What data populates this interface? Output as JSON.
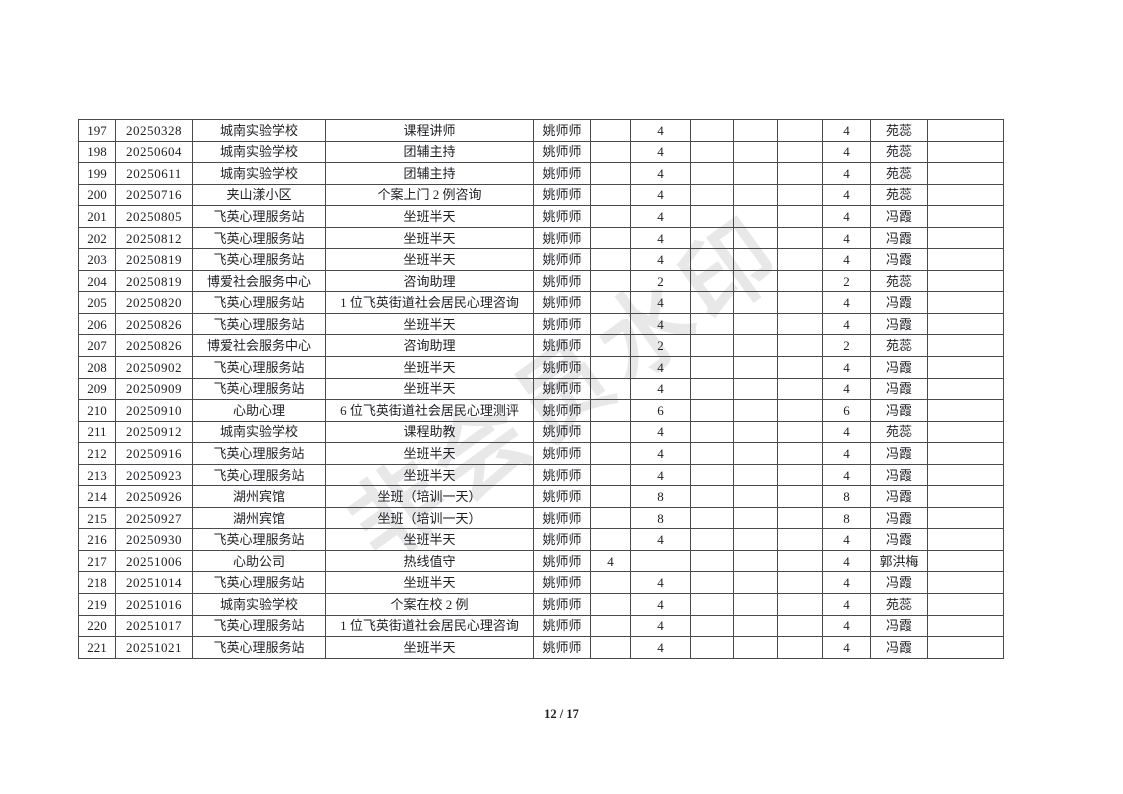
{
  "page": {
    "footer_text": "12 / 17",
    "watermark_text": "非会员水印",
    "text_color": "#1e1e24",
    "border_color": "#4a4a4a",
    "watermark_color": "#e8e8e8",
    "background_color": "#ffffff"
  },
  "table": {
    "rows": [
      [
        "197",
        "20250328",
        "城南实验学校",
        "课程讲师",
        "姚师师",
        "",
        "4",
        "",
        "",
        "",
        "4",
        "苑蕊",
        ""
      ],
      [
        "198",
        "20250604",
        "城南实验学校",
        "团辅主持",
        "姚师师",
        "",
        "4",
        "",
        "",
        "",
        "4",
        "苑蕊",
        ""
      ],
      [
        "199",
        "20250611",
        "城南实验学校",
        "团辅主持",
        "姚师师",
        "",
        "4",
        "",
        "",
        "",
        "4",
        "苑蕊",
        ""
      ],
      [
        "200",
        "20250716",
        "夹山漾小区",
        "个案上门 2 例咨询",
        "姚师师",
        "",
        "4",
        "",
        "",
        "",
        "4",
        "苑蕊",
        ""
      ],
      [
        "201",
        "20250805",
        "飞英心理服务站",
        "坐班半天",
        "姚师师",
        "",
        "4",
        "",
        "",
        "",
        "4",
        "冯霞",
        ""
      ],
      [
        "202",
        "20250812",
        "飞英心理服务站",
        "坐班半天",
        "姚师师",
        "",
        "4",
        "",
        "",
        "",
        "4",
        "冯霞",
        ""
      ],
      [
        "203",
        "20250819",
        "飞英心理服务站",
        "坐班半天",
        "姚师师",
        "",
        "4",
        "",
        "",
        "",
        "4",
        "冯霞",
        ""
      ],
      [
        "204",
        "20250819",
        "博爱社会服务中心",
        "咨询助理",
        "姚师师",
        "",
        "2",
        "",
        "",
        "",
        "2",
        "苑蕊",
        ""
      ],
      [
        "205",
        "20250820",
        "飞英心理服务站",
        "1 位飞英街道社会居民心理咨询",
        "姚师师",
        "",
        "4",
        "",
        "",
        "",
        "4",
        "冯霞",
        ""
      ],
      [
        "206",
        "20250826",
        "飞英心理服务站",
        "坐班半天",
        "姚师师",
        "",
        "4",
        "",
        "",
        "",
        "4",
        "冯霞",
        ""
      ],
      [
        "207",
        "20250826",
        "博爱社会服务中心",
        "咨询助理",
        "姚师师",
        "",
        "2",
        "",
        "",
        "",
        "2",
        "苑蕊",
        ""
      ],
      [
        "208",
        "20250902",
        "飞英心理服务站",
        "坐班半天",
        "姚师师",
        "",
        "4",
        "",
        "",
        "",
        "4",
        "冯霞",
        ""
      ],
      [
        "209",
        "20250909",
        "飞英心理服务站",
        "坐班半天",
        "姚师师",
        "",
        "4",
        "",
        "",
        "",
        "4",
        "冯霞",
        ""
      ],
      [
        "210",
        "20250910",
        "心助心理",
        "6 位飞英街道社会居民心理测评",
        "姚师师",
        "",
        "6",
        "",
        "",
        "",
        "6",
        "冯霞",
        ""
      ],
      [
        "211",
        "20250912",
        "城南实验学校",
        "课程助教",
        "姚师师",
        "",
        "4",
        "",
        "",
        "",
        "4",
        "苑蕊",
        ""
      ],
      [
        "212",
        "20250916",
        "飞英心理服务站",
        "坐班半天",
        "姚师师",
        "",
        "4",
        "",
        "",
        "",
        "4",
        "冯霞",
        ""
      ],
      [
        "213",
        "20250923",
        "飞英心理服务站",
        "坐班半天",
        "姚师师",
        "",
        "4",
        "",
        "",
        "",
        "4",
        "冯霞",
        ""
      ],
      [
        "214",
        "20250926",
        "湖州宾馆",
        "坐班（培训一天）",
        "姚师师",
        "",
        "8",
        "",
        "",
        "",
        "8",
        "冯霞",
        ""
      ],
      [
        "215",
        "20250927",
        "湖州宾馆",
        "坐班（培训一天）",
        "姚师师",
        "",
        "8",
        "",
        "",
        "",
        "8",
        "冯霞",
        ""
      ],
      [
        "216",
        "20250930",
        "飞英心理服务站",
        "坐班半天",
        "姚师师",
        "",
        "4",
        "",
        "",
        "",
        "4",
        "冯霞",
        ""
      ],
      [
        "217",
        "20251006",
        "心助公司",
        "热线值守",
        "姚师师",
        "4",
        "",
        "",
        "",
        "",
        "4",
        "郭洪梅",
        ""
      ],
      [
        "218",
        "20251014",
        "飞英心理服务站",
        "坐班半天",
        "姚师师",
        "",
        "4",
        "",
        "",
        "",
        "4",
        "冯霞",
        ""
      ],
      [
        "219",
        "20251016",
        "城南实验学校",
        "个案在校 2 例",
        "姚师师",
        "",
        "4",
        "",
        "",
        "",
        "4",
        "苑蕊",
        ""
      ],
      [
        "220",
        "20251017",
        "飞英心理服务站",
        "1 位飞英街道社会居民心理咨询",
        "姚师师",
        "",
        "4",
        "",
        "",
        "",
        "4",
        "冯霞",
        ""
      ],
      [
        "221",
        "20251021",
        "飞英心理服务站",
        "坐班半天",
        "姚师师",
        "",
        "4",
        "",
        "",
        "",
        "4",
        "冯霞",
        ""
      ]
    ]
  }
}
